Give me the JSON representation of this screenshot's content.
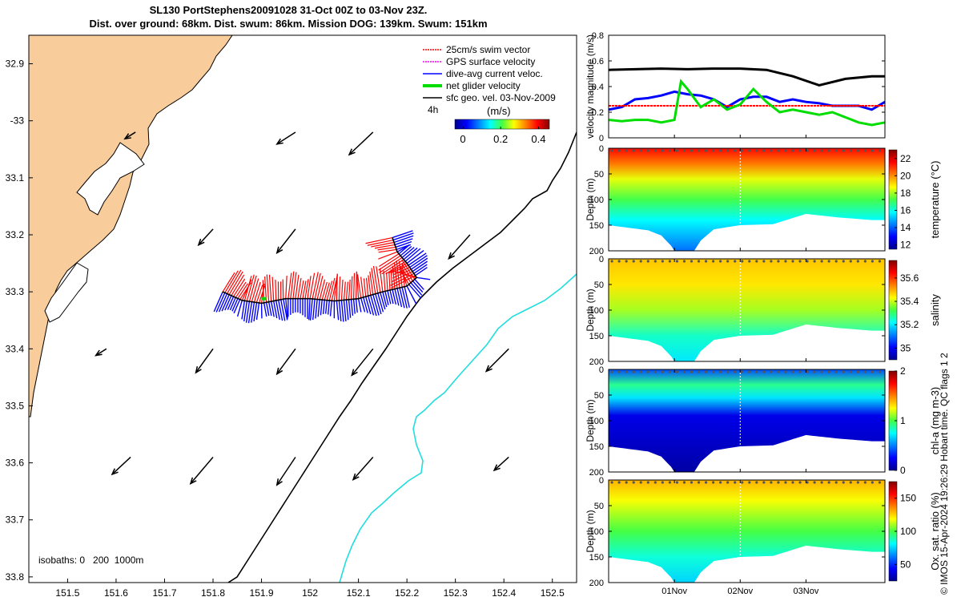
{
  "header": {
    "line1": "SL130 PortStephens20091028 31-Oct 00Z to 03-Nov 23Z.",
    "line2": "Dist. over ground: 68km. Dist. swum: 86km. Mission DOG: 139km. Swum: 151km"
  },
  "copyright": "© IMOS 15-Apr-2024 19:26:29 Hobart time. QC flags 1  2",
  "colors": {
    "land": "#f9cc9c",
    "coast_line": "#000000",
    "isobath_200": "#000000",
    "isobath_1000": "#22dddd",
    "swim_vector": "#ff0000",
    "gps_velocity": "#ff00ff",
    "dive_avg": "#0000ff",
    "net_velocity": "#00dd00",
    "geo_velocity": "#000000"
  },
  "chart_data": [
    {
      "type": "map",
      "xlim": [
        151.42,
        152.55
      ],
      "ylim": [
        -33.81,
        -32.85
      ],
      "x_ticks": [
        151.5,
        151.6,
        151.7,
        151.8,
        151.9,
        152,
        152.1,
        152.2,
        152.3,
        152.4,
        152.5
      ],
      "x_tick_labels": [
        "151.5",
        "151.6",
        "151.7",
        "151.8",
        "151.9",
        "152",
        "152.1",
        "152.2",
        "152.3",
        "152.4",
        "152.5"
      ],
      "y_ticks": [
        -32.9,
        -33,
        -33.1,
        -33.2,
        -33.3,
        -33.4,
        -33.5,
        -33.6,
        -33.7,
        -33.8
      ],
      "y_tick_labels": [
        "32.9",
        "-33",
        "33.1",
        "33.2",
        "33.3",
        "33.4",
        "33.5",
        "33.6",
        "33.7",
        "33.8"
      ],
      "legend": {
        "placement": "top-right",
        "items": [
          {
            "label": "25cm/s swim vector",
            "color": "#ff0000",
            "style": "dotted-arrow"
          },
          {
            "label": "GPS surface velocity",
            "color": "#ff00ff",
            "style": "dotted-arrow"
          },
          {
            "label": "dive-avg current veloc.",
            "color": "#0000ff",
            "style": "line"
          },
          {
            "label": "net glider velocity",
            "color": "#00dd00",
            "style": "thick-line"
          },
          {
            "label": "sfc geo. vel. 03-Nov-2009",
            "color": "#000000",
            "style": "arrow"
          }
        ],
        "time_step": "4h",
        "units": "(m/s)"
      },
      "colorbar": {
        "ticks": [
          0,
          0.2,
          0.4
        ],
        "tick_labels": [
          "0",
          "0.2",
          "0.4"
        ],
        "range": [
          0,
          0.5
        ]
      },
      "isobaths_label": "isobaths: 0   200  1000m",
      "geo_velocity_arrows": [
        {
          "lon": 151.64,
          "lat": -33.02,
          "u": -0.04,
          "v": -0.025
        },
        {
          "lon": 151.97,
          "lat": -33.02,
          "u": -0.07,
          "v": -0.045
        },
        {
          "lon": 152.13,
          "lat": -33.02,
          "u": -0.09,
          "v": -0.085
        },
        {
          "lon": 151.8,
          "lat": -33.19,
          "u": -0.055,
          "v": -0.06
        },
        {
          "lon": 151.97,
          "lat": -33.19,
          "u": -0.07,
          "v": -0.09
        },
        {
          "lon": 152.33,
          "lat": -33.2,
          "u": -0.08,
          "v": -0.09
        },
        {
          "lon": 151.58,
          "lat": -33.4,
          "u": -0.04,
          "v": -0.025
        },
        {
          "lon": 151.8,
          "lat": -33.4,
          "u": -0.065,
          "v": -0.09
        },
        {
          "lon": 151.97,
          "lat": -33.4,
          "u": -0.07,
          "v": -0.095
        },
        {
          "lon": 152.13,
          "lat": -33.4,
          "u": -0.08,
          "v": -0.1
        },
        {
          "lon": 152.41,
          "lat": -33.4,
          "u": -0.085,
          "v": -0.085
        },
        {
          "lon": 151.63,
          "lat": -33.59,
          "u": -0.07,
          "v": -0.065
        },
        {
          "lon": 151.8,
          "lat": -33.59,
          "u": -0.085,
          "v": -0.1
        },
        {
          "lon": 151.97,
          "lat": -33.59,
          "u": -0.07,
          "v": -0.105
        },
        {
          "lon": 152.13,
          "lat": -33.59,
          "u": -0.075,
          "v": -0.085
        },
        {
          "lon": 152.41,
          "lat": -33.59,
          "u": -0.055,
          "v": -0.05
        }
      ],
      "glider_track": [
        [
          151.82,
          -33.3
        ],
        [
          151.86,
          -33.315
        ],
        [
          151.9,
          -33.32
        ],
        [
          151.95,
          -33.312
        ],
        [
          152.0,
          -33.312
        ],
        [
          152.05,
          -33.316
        ],
        [
          152.1,
          -33.312
        ],
        [
          152.15,
          -33.3
        ],
        [
          152.2,
          -33.29
        ],
        [
          152.22,
          -33.275
        ],
        [
          152.2,
          -33.25
        ],
        [
          152.18,
          -33.23
        ],
        [
          152.17,
          -33.205
        ]
      ]
    },
    {
      "type": "line",
      "ylabel": "velocity magnitude (m/s)",
      "xlim": [
        0,
        4.2
      ],
      "ylim": [
        0,
        0.8
      ],
      "y_ticks": [
        0,
        0.2,
        0.4,
        0.6,
        0.8
      ],
      "y_tick_labels": [
        "0",
        "0.2",
        "0.4",
        "0.6",
        "0.8"
      ],
      "series": [
        {
          "color": "#000000",
          "x": [
            0,
            0.4,
            0.8,
            1.2,
            1.6,
            2.0,
            2.4,
            2.8,
            3.2,
            3.6,
            4.0,
            4.2
          ],
          "y": [
            0.53,
            0.535,
            0.54,
            0.535,
            0.54,
            0.54,
            0.53,
            0.48,
            0.41,
            0.46,
            0.48,
            0.48
          ]
        },
        {
          "color": "#0000ff",
          "x": [
            0,
            0.2,
            0.4,
            0.6,
            0.8,
            1.0,
            1.2,
            1.4,
            1.6,
            1.8,
            2.0,
            2.2,
            2.4,
            2.6,
            2.8,
            3.0,
            3.2,
            3.4,
            3.6,
            3.8,
            4.0,
            4.2
          ],
          "y": [
            0.22,
            0.24,
            0.3,
            0.31,
            0.33,
            0.36,
            0.34,
            0.33,
            0.3,
            0.24,
            0.3,
            0.32,
            0.32,
            0.28,
            0.3,
            0.28,
            0.27,
            0.25,
            0.25,
            0.25,
            0.22,
            0.28
          ]
        },
        {
          "color": "#ff0000",
          "x": [
            0,
            4.2
          ],
          "y": [
            0.25,
            0.25
          ]
        },
        {
          "color": "#00dd00",
          "x": [
            0,
            0.2,
            0.4,
            0.6,
            0.8,
            1.0,
            1.1,
            1.2,
            1.4,
            1.6,
            1.8,
            2.0,
            2.2,
            2.4,
            2.6,
            2.8,
            3.0,
            3.2,
            3.4,
            3.6,
            3.8,
            4.0,
            4.2
          ],
          "y": [
            0.14,
            0.13,
            0.14,
            0.14,
            0.12,
            0.14,
            0.44,
            0.38,
            0.24,
            0.3,
            0.22,
            0.26,
            0.38,
            0.28,
            0.2,
            0.22,
            0.2,
            0.18,
            0.2,
            0.16,
            0.12,
            0.1,
            0.12
          ]
        }
      ]
    },
    {
      "type": "heatmap",
      "variable": "temperature",
      "ylabel": "Depth (m)",
      "colorbar_label": "temperature (°C)",
      "ylim": [
        200,
        0
      ],
      "y_ticks": [
        0,
        50,
        100,
        150,
        200
      ],
      "y_tick_labels": [
        "0",
        "50",
        "100",
        "150",
        "200"
      ],
      "colorbar_range": [
        11.5,
        23
      ],
      "colorbar_ticks": [
        12,
        14,
        16,
        18,
        20,
        22
      ],
      "colorbar_tick_labels": [
        "12",
        "14",
        "16",
        "18",
        "20",
        "22"
      ],
      "color_stops": [
        {
          "depth": 0,
          "value": 21.5
        },
        {
          "depth": 30,
          "value": 20.2
        },
        {
          "depth": 60,
          "value": 18.5
        },
        {
          "depth": 100,
          "value": 17.2
        },
        {
          "depth": 140,
          "value": 15.8
        },
        {
          "depth": 200,
          "value": 14.2
        }
      ]
    },
    {
      "type": "heatmap",
      "variable": "salinity",
      "ylabel": "Depth (m)",
      "colorbar_label": "salinity",
      "ylim": [
        200,
        0
      ],
      "y_ticks": [
        0,
        50,
        100,
        150,
        200
      ],
      "y_tick_labels": [
        "0",
        "50",
        "100",
        "150",
        "200"
      ],
      "colorbar_range": [
        34.9,
        35.75
      ],
      "colorbar_ticks": [
        35,
        35.2,
        35.4,
        35.6
      ],
      "colorbar_tick_labels": [
        "35",
        "35.2",
        "35.4",
        "35.6"
      ],
      "color_stops": [
        {
          "depth": 0,
          "value": 35.48
        },
        {
          "depth": 50,
          "value": 35.45
        },
        {
          "depth": 100,
          "value": 35.38
        },
        {
          "depth": 150,
          "value": 35.25
        },
        {
          "depth": 200,
          "value": 35.2
        }
      ]
    },
    {
      "type": "heatmap",
      "variable": "chl-a",
      "ylabel": "Depth (m)",
      "colorbar_label": "chl-a (mg m-3)",
      "ylim": [
        200,
        0
      ],
      "y_ticks": [
        0,
        50,
        100,
        150,
        200
      ],
      "y_tick_labels": [
        "0",
        "50",
        "100",
        "150",
        "200"
      ],
      "colorbar_range": [
        0,
        2
      ],
      "colorbar_ticks": [
        0,
        1,
        2
      ],
      "colorbar_tick_labels": [
        "0",
        "1",
        "2"
      ],
      "color_stops": [
        {
          "depth": 0,
          "value": 0.4
        },
        {
          "depth": 30,
          "value": 0.9
        },
        {
          "depth": 55,
          "value": 0.7
        },
        {
          "depth": 90,
          "value": 0.2
        },
        {
          "depth": 200,
          "value": 0.05
        }
      ]
    },
    {
      "type": "heatmap",
      "variable": "oxygen saturation",
      "ylabel": "Depth (m)",
      "colorbar_label": "Ox. sat. ratio (%)",
      "ylim": [
        200,
        0
      ],
      "y_ticks": [
        0,
        50,
        100,
        150,
        200
      ],
      "y_tick_labels": [
        "0",
        "50",
        "100",
        "150",
        "200"
      ],
      "colorbar_range": [
        25,
        175
      ],
      "colorbar_ticks": [
        50,
        100,
        150
      ],
      "colorbar_tick_labels": [
        "50",
        "100",
        "150"
      ],
      "color_stops": [
        {
          "depth": 0,
          "value": 130
        },
        {
          "depth": 40,
          "value": 118
        },
        {
          "depth": 100,
          "value": 100
        },
        {
          "depth": 150,
          "value": 85
        },
        {
          "depth": 200,
          "value": 75
        }
      ]
    }
  ],
  "time_axis": {
    "range": [
      0,
      4.2
    ],
    "ticks": [
      1,
      2,
      3
    ],
    "tick_labels": [
      "01Nov",
      "02Nov",
      "03Nov"
    ]
  }
}
